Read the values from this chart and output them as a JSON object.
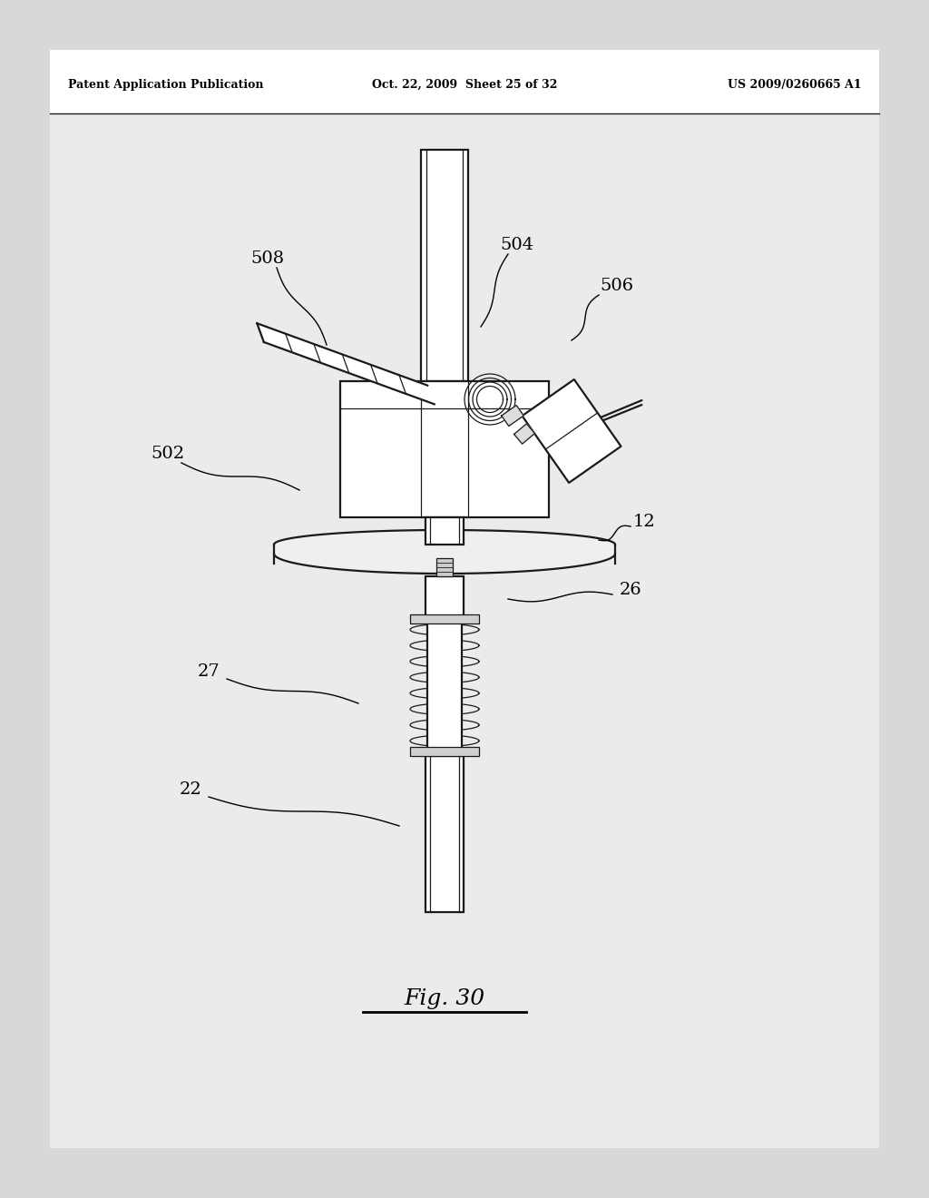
{
  "bg_color": "#d8d8d8",
  "page_color": "#e8e8e8",
  "header_left": "Patent Application Publication",
  "header_mid": "Oct. 22, 2009  Sheet 25 of 32",
  "header_right": "US 2009/0260665 A1",
  "figure_caption": "Fig. 30",
  "draw_color": "#1a1a1a",
  "light_fill": "#f2f2f2",
  "mid_fill": "#d0d0d0",
  "dark_fill": "#a0a0a0"
}
